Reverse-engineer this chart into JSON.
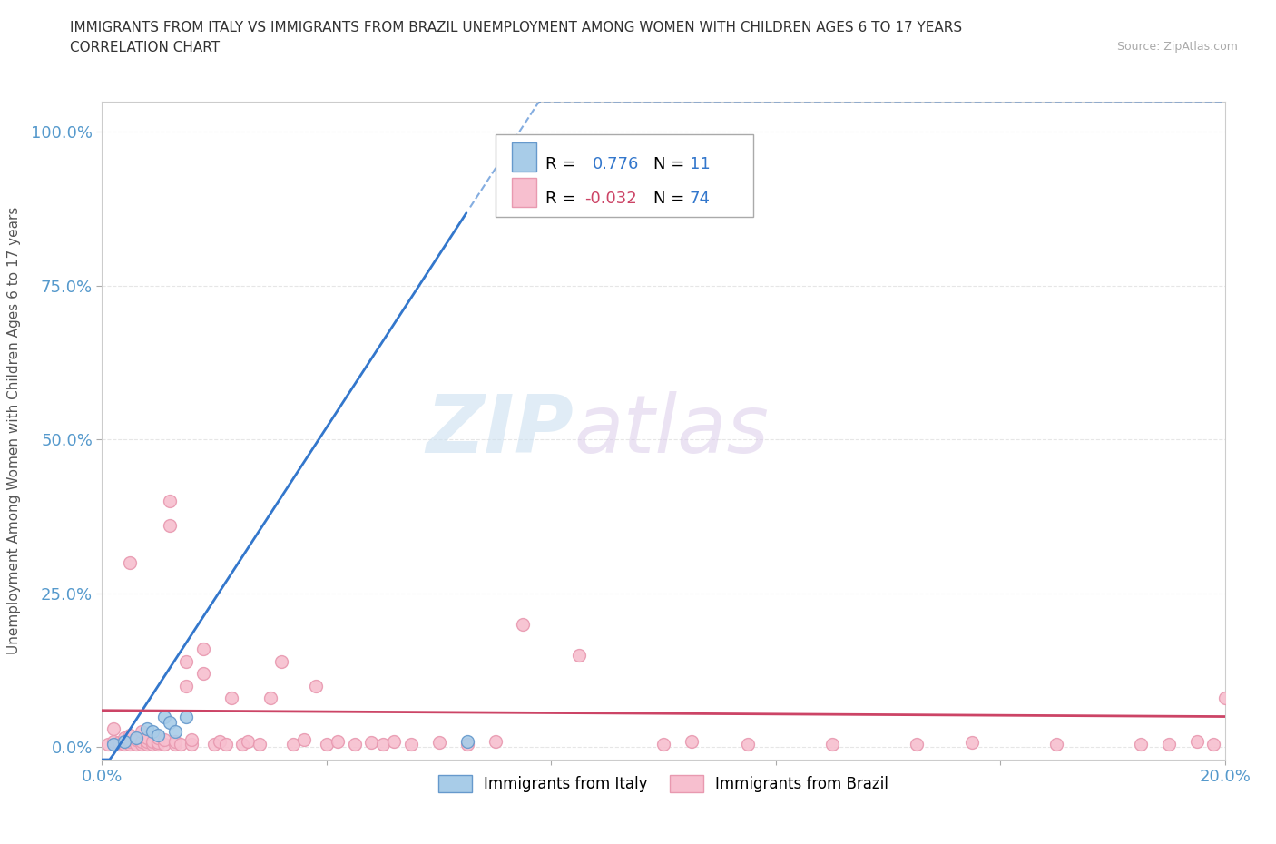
{
  "title_line1": "IMMIGRANTS FROM ITALY VS IMMIGRANTS FROM BRAZIL UNEMPLOYMENT AMONG WOMEN WITH CHILDREN AGES 6 TO 17 YEARS",
  "title_line2": "CORRELATION CHART",
  "source_text": "Source: ZipAtlas.com",
  "ylabel": "Unemployment Among Women with Children Ages 6 to 17 years",
  "xlim": [
    0.0,
    0.2
  ],
  "ylim": [
    -0.02,
    1.05
  ],
  "xtick_positions": [
    0.0,
    0.04,
    0.08,
    0.12,
    0.16,
    0.2
  ],
  "xtick_labels": [
    "0.0%",
    "",
    "",
    "",
    "",
    "20.0%"
  ],
  "ytick_positions": [
    0.0,
    0.25,
    0.5,
    0.75,
    1.0
  ],
  "ytick_labels": [
    "0.0%",
    "25.0%",
    "50.0%",
    "75.0%",
    "100.0%"
  ],
  "watermark_zip": "ZIP",
  "watermark_atlas": "atlas",
  "italy_color": "#a8cce8",
  "brazil_color": "#f7bfcf",
  "italy_edge": "#6699cc",
  "brazil_edge": "#e899b0",
  "italy_R": 0.776,
  "italy_N": 11,
  "brazil_R": -0.032,
  "brazil_N": 74,
  "italy_scatter_x": [
    0.002,
    0.004,
    0.006,
    0.008,
    0.009,
    0.01,
    0.011,
    0.012,
    0.013,
    0.015,
    0.065
  ],
  "italy_scatter_y": [
    0.005,
    0.01,
    0.015,
    0.03,
    0.025,
    0.02,
    0.05,
    0.04,
    0.025,
    0.05,
    0.01
  ],
  "brazil_scatter_x": [
    0.001,
    0.002,
    0.002,
    0.003,
    0.003,
    0.004,
    0.004,
    0.004,
    0.005,
    0.005,
    0.005,
    0.005,
    0.006,
    0.006,
    0.007,
    0.007,
    0.007,
    0.008,
    0.008,
    0.008,
    0.009,
    0.009,
    0.01,
    0.01,
    0.01,
    0.011,
    0.011,
    0.012,
    0.012,
    0.013,
    0.013,
    0.014,
    0.015,
    0.015,
    0.016,
    0.016,
    0.018,
    0.018,
    0.02,
    0.021,
    0.022,
    0.023,
    0.025,
    0.026,
    0.028,
    0.03,
    0.032,
    0.034,
    0.036,
    0.038,
    0.04,
    0.042,
    0.045,
    0.048,
    0.05,
    0.052,
    0.055,
    0.06,
    0.065,
    0.07,
    0.075,
    0.085,
    0.1,
    0.105,
    0.115,
    0.13,
    0.145,
    0.155,
    0.17,
    0.185,
    0.19,
    0.195,
    0.198,
    0.2
  ],
  "brazil_scatter_y": [
    0.005,
    0.01,
    0.03,
    0.005,
    0.008,
    0.005,
    0.01,
    0.015,
    0.005,
    0.01,
    0.02,
    0.3,
    0.005,
    0.012,
    0.005,
    0.01,
    0.025,
    0.005,
    0.01,
    0.015,
    0.005,
    0.01,
    0.005,
    0.008,
    0.015,
    0.005,
    0.012,
    0.36,
    0.4,
    0.005,
    0.01,
    0.005,
    0.1,
    0.14,
    0.005,
    0.012,
    0.12,
    0.16,
    0.005,
    0.01,
    0.005,
    0.08,
    0.005,
    0.01,
    0.005,
    0.08,
    0.14,
    0.005,
    0.012,
    0.1,
    0.005,
    0.01,
    0.005,
    0.008,
    0.005,
    0.01,
    0.005,
    0.008,
    0.005,
    0.01,
    0.2,
    0.15,
    0.005,
    0.01,
    0.005,
    0.005,
    0.005,
    0.008,
    0.005,
    0.005,
    0.005,
    0.01,
    0.005,
    0.08
  ],
  "background_color": "#ffffff",
  "grid_color": "#e0e0e0",
  "title_color": "#333333",
  "axis_label_color": "#555555",
  "tick_color": "#5599cc",
  "italy_line_color": "#3377cc",
  "brazil_line_color": "#cc4466",
  "italy_line_slope": 14.0,
  "italy_line_intercept": -0.04,
  "brazil_line_slope": -0.05,
  "brazil_line_intercept": 0.06,
  "scatter_size": 100
}
